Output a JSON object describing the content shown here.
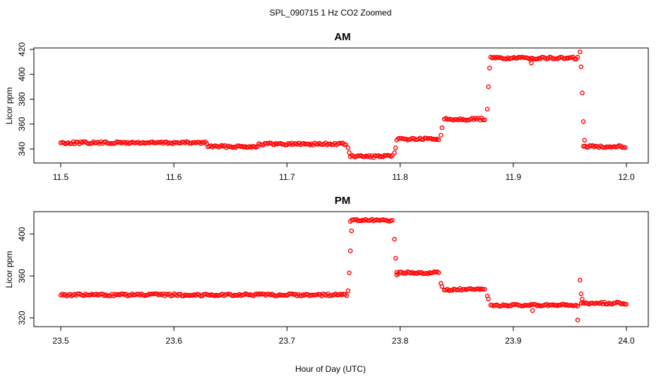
{
  "figure": {
    "supertitle": "SPL_090715  1 Hz CO2 Zoomed",
    "xlabel": "Hour of Day (UTC)"
  },
  "chart_data": [
    {
      "type": "scatter",
      "title": "AM",
      "xlabel": "",
      "ylabel": "Licor ppm",
      "xlim": [
        11.5,
        12.0
      ],
      "ylim": [
        331,
        420
      ],
      "x_ticks": [
        "11.5",
        "11.6",
        "11.7",
        "11.8",
        "11.9",
        "12.0"
      ],
      "y_ticks": [
        "340",
        "360",
        "380",
        "400",
        "420"
      ],
      "marker": "open-circle",
      "color": "#ff0000",
      "grid": false,
      "series": [
        {
          "segments": [
            {
              "x0": 11.5,
              "x1": 11.63,
              "y": 345
            },
            {
              "x0": 11.63,
              "x1": 11.675,
              "y": 342
            },
            {
              "x0": 11.675,
              "x1": 11.753,
              "y": 344
            },
            {
              "x0": 11.756,
              "x1": 11.794,
              "y": 334
            },
            {
              "x0": 11.797,
              "x1": 11.835,
              "y": 348
            },
            {
              "x0": 11.839,
              "x1": 11.876,
              "y": 364
            },
            {
              "x0": 11.88,
              "x1": 11.958,
              "y": 413
            },
            {
              "x0": 11.962,
              "x1": 12.0,
              "y": 342
            }
          ],
          "transition_points": [
            [
              11.754,
              341
            ],
            [
              11.755,
              337
            ],
            [
              11.795,
              337
            ],
            [
              11.796,
              341
            ],
            [
              11.836,
              351
            ],
            [
              11.837,
              357
            ],
            [
              11.877,
              372
            ],
            [
              11.878,
              390
            ],
            [
              11.879,
              405
            ],
            [
              11.916,
              409
            ],
            [
              11.959,
              418
            ],
            [
              11.96,
              406
            ],
            [
              11.961,
              385
            ],
            [
              11.962,
              362
            ],
            [
              11.963,
              347
            ]
          ]
        }
      ]
    },
    {
      "type": "scatter",
      "title": "PM",
      "xlabel": "",
      "ylabel": "Licor ppm",
      "xlim": [
        23.5,
        24.0
      ],
      "ylim": [
        313,
        420
      ],
      "x_ticks": [
        "23.5",
        "23.6",
        "23.7",
        "23.8",
        "23.9",
        "24.0"
      ],
      "y_ticks": [
        "320",
        "360",
        "400"
      ],
      "marker": "open-circle",
      "color": "#ff0000",
      "grid": false,
      "series": [
        {
          "segments": [
            {
              "x0": 23.5,
              "x1": 23.753,
              "y": 342
            },
            {
              "x0": 23.756,
              "x1": 23.794,
              "y": 413
            },
            {
              "x0": 23.797,
              "x1": 23.835,
              "y": 363
            },
            {
              "x0": 23.839,
              "x1": 23.876,
              "y": 347
            },
            {
              "x0": 23.88,
              "x1": 23.958,
              "y": 332
            },
            {
              "x0": 23.96,
              "x1": 24.0,
              "y": 334
            }
          ],
          "transition_points": [
            [
              23.754,
              346
            ],
            [
              23.755,
              363
            ],
            [
              23.756,
              384
            ],
            [
              23.757,
              403
            ],
            [
              23.795,
              395
            ],
            [
              23.796,
              377
            ],
            [
              23.797,
              361
            ],
            [
              23.836,
              353
            ],
            [
              23.837,
              350
            ],
            [
              23.877,
              341
            ],
            [
              23.878,
              338
            ],
            [
              23.917,
              327
            ],
            [
              23.957,
              318
            ],
            [
              23.959,
              356
            ],
            [
              23.96,
              343
            ],
            [
              23.961,
              338
            ]
          ]
        }
      ]
    }
  ]
}
